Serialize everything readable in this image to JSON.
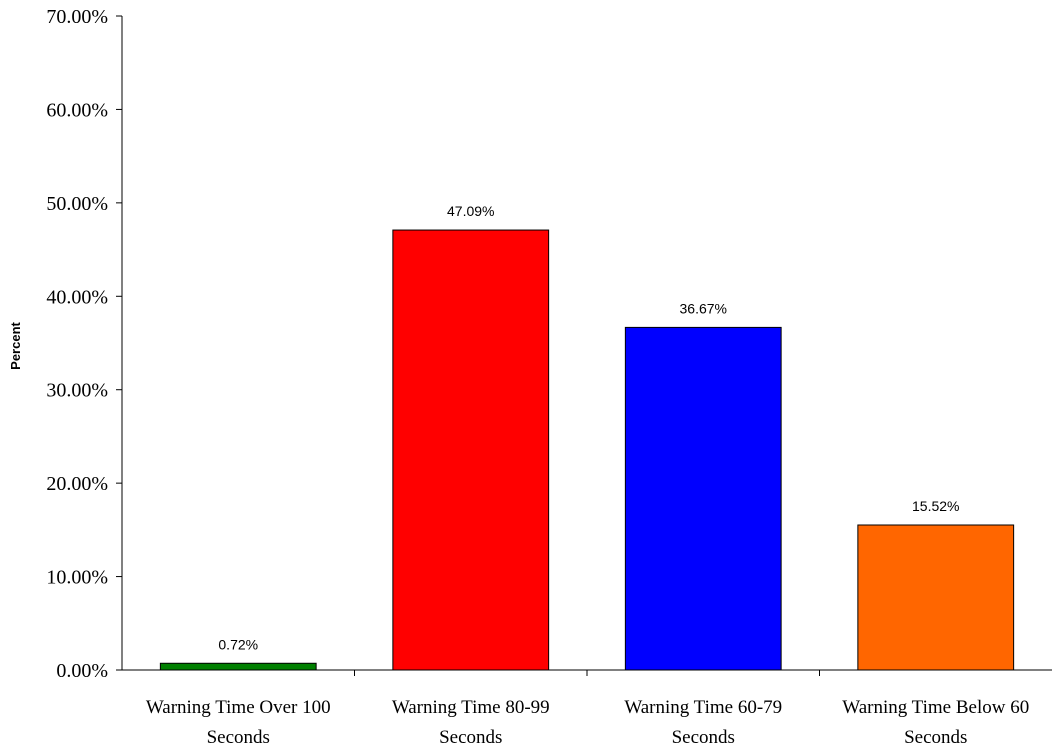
{
  "chart_data": {
    "type": "bar",
    "title": "",
    "xlabel": "",
    "ylabel": "Percent",
    "ylim": [
      0,
      70
    ],
    "y_ticks": [
      "0.00%",
      "10.00%",
      "20.00%",
      "30.00%",
      "40.00%",
      "50.00%",
      "60.00%",
      "70.00%"
    ],
    "categories": [
      [
        "Warning Time Over 100",
        "Seconds"
      ],
      [
        "Warning Time 80-99",
        "Seconds"
      ],
      [
        "Warning Time 60-79",
        "Seconds"
      ],
      [
        "Warning Time Below 60",
        "Seconds"
      ]
    ],
    "values": [
      0.72,
      47.09,
      36.67,
      15.52
    ],
    "data_labels": [
      "0.72%",
      "47.09%",
      "36.67%",
      "15.52%"
    ],
    "colors": [
      "#008000",
      "#ff0000",
      "#0000ff",
      "#ff6600"
    ],
    "grid": false,
    "legend": "none"
  }
}
